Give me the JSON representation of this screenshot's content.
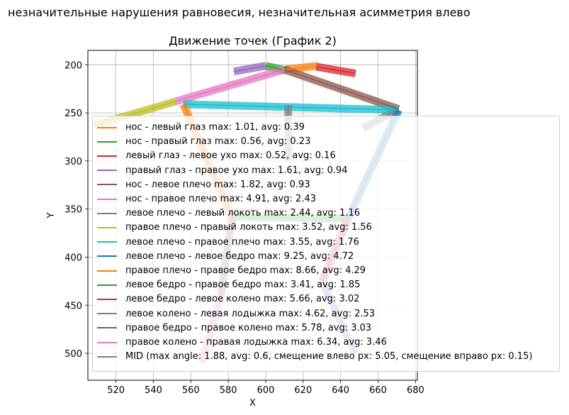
{
  "figure": {
    "suptitle": "незначительные нарушения равновесия, незначительная асимметрия влево"
  },
  "chart_data": {
    "type": "line",
    "title": "Движение точек (График 2)",
    "xlabel": "X",
    "ylabel": "Y",
    "xlim": [
      505,
      681
    ],
    "ylim": [
      528,
      185
    ],
    "y_inverted": true,
    "grid": true,
    "xticks": [
      520,
      540,
      560,
      580,
      600,
      620,
      640,
      660,
      680
    ],
    "yticks": [
      200,
      250,
      300,
      350,
      400,
      450,
      500
    ],
    "legend_position": "lower-right (overlapping plot)",
    "series": [
      {
        "name": "нос - левый глаз max: 1.01, avg: 0.39",
        "color": "#ff7f0e",
        "x": [
          610,
          628
        ],
        "y": [
          205,
          201
        ]
      },
      {
        "name": "нос - правый глаз max: 0.56, avg: 0.23",
        "color": "#2ca02c",
        "x": [
          600,
          611
        ],
        "y": [
          201,
          206
        ]
      },
      {
        "name": "левый глаз - левое ухо max: 0.52, avg: 0.16",
        "color": "#d62728",
        "x": [
          627,
          648
        ],
        "y": [
          202,
          209
        ]
      },
      {
        "name": "правый глаз - правое ухо max: 1.61, avg: 0.94",
        "color": "#9467bd",
        "x": [
          600,
          583
        ],
        "y": [
          201,
          207
        ]
      },
      {
        "name": "нос - левое плечо max: 1.82, avg: 0.93",
        "color": "#8c564b",
        "x": [
          610,
          671
        ],
        "y": [
          205,
          246
        ]
      },
      {
        "name": "нос - правое плечо max: 4.91, avg: 2.43",
        "color": "#e377c2",
        "x": [
          610,
          552
        ],
        "y": [
          205,
          238
        ]
      },
      {
        "name": "левое плечо - левый локоть max: 2.44, avg: 1.16",
        "color": "#7f7f7f",
        "x": [
          671,
          652
        ],
        "y": [
          246,
          266
        ]
      },
      {
        "name": "правое плечо - правый локоть max: 3.52, avg: 1.56",
        "color": "#bcbd22",
        "x": [
          552,
          508
        ],
        "y": [
          238,
          263
        ]
      },
      {
        "name": "левое плечо - правое плечо max: 3.55, avg: 1.76",
        "color": "#17becf",
        "x": [
          671,
          556
        ],
        "y": [
          247,
          241
        ]
      },
      {
        "name": "левое плечо - левое бедро max: 9.25, avg: 4.72",
        "color": "#1f77b4",
        "x": [
          671,
          644
        ],
        "y": [
          247,
          360
        ]
      },
      {
        "name": "правое плечо - правое бедро max: 8.66, avg: 4.29",
        "color": "#ff7f0e",
        "x": [
          556,
          582
        ],
        "y": [
          241,
          358
        ]
      },
      {
        "name": "левое бедро - правое бедро max: 3.41, avg: 1.85",
        "color": "#2ca02c",
        "x": [
          644,
          582
        ],
        "y": [
          360,
          358
        ]
      },
      {
        "name": "левое бедро - левое колено max: 5.66, avg: 3.02",
        "color": "#d62728",
        "x": [
          644,
          630
        ],
        "y": [
          360,
          425
        ]
      },
      {
        "name": "левое колено - левая лодыжка max: 4.62, avg: 2.53",
        "color": "#9467bd",
        "x": [
          630,
          648
        ],
        "y": [
          425,
          500
        ]
      },
      {
        "name": "правое бедро - правое колено max: 5.78, avg: 3.03",
        "color": "#8c564b",
        "x": [
          582,
          576
        ],
        "y": [
          358,
          440
        ]
      },
      {
        "name": "правое колено - правая лодыжка max: 6.34, avg: 3.46",
        "color": "#e377c2",
        "x": [
          576,
          566
        ],
        "y": [
          440,
          510
        ]
      },
      {
        "name": "MID (max angle: 1.88, avg: 0.6, смещение влево px: 5.05, смещение вправо px: 0.15)",
        "color": "#7f7f7f",
        "x": [
          612,
          612
        ],
        "y": [
          242,
          300
        ]
      }
    ]
  }
}
